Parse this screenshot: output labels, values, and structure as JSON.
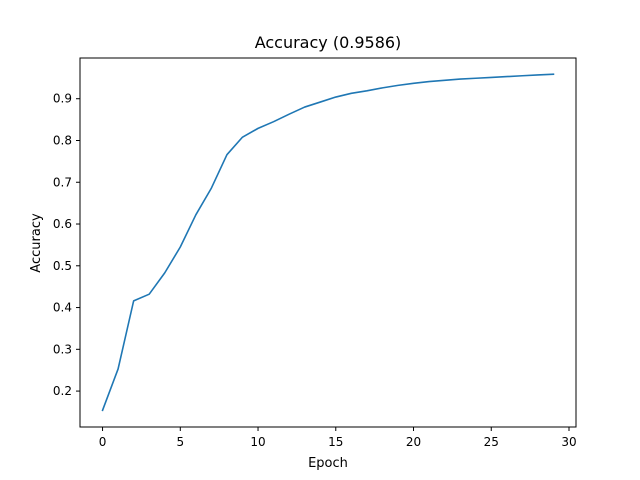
{
  "chart_data": {
    "type": "line",
    "title": "Accuracy (0.9586)",
    "xlabel": "Epoch",
    "ylabel": "Accuracy",
    "xlim": [
      -1.45,
      30.45
    ],
    "ylim": [
      0.114,
      0.9975
    ],
    "xticks": [
      0,
      5,
      10,
      15,
      20,
      25,
      30
    ],
    "yticks": [
      0.2,
      0.3,
      0.4,
      0.5,
      0.6,
      0.7,
      0.8,
      0.9
    ],
    "xtick_labels": [
      "0",
      "5",
      "10",
      "15",
      "20",
      "25",
      "30"
    ],
    "ytick_labels": [
      "0.2",
      "0.3",
      "0.4",
      "0.5",
      "0.6",
      "0.7",
      "0.8",
      "0.9"
    ],
    "grid": false,
    "legend": false,
    "line_color": "#1f77b4",
    "x": [
      0,
      1,
      2,
      3,
      4,
      5,
      6,
      7,
      8,
      9,
      10,
      11,
      12,
      13,
      14,
      15,
      16,
      17,
      18,
      19,
      20,
      21,
      22,
      23,
      24,
      25,
      26,
      27,
      28,
      29
    ],
    "series": [
      {
        "values": [
          0.154,
          0.253,
          0.416,
          0.432,
          0.483,
          0.545,
          0.622,
          0.686,
          0.766,
          0.808,
          0.829,
          0.845,
          0.863,
          0.88,
          0.892,
          0.904,
          0.913,
          0.919,
          0.926,
          0.932,
          0.937,
          0.941,
          0.944,
          0.947,
          0.949,
          0.951,
          0.953,
          0.955,
          0.957,
          0.9586
        ]
      }
    ]
  }
}
